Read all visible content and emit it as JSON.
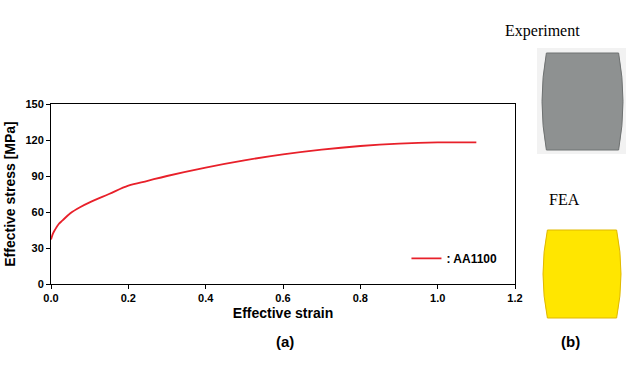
{
  "chart_data": {
    "type": "line",
    "x_label": "Effective strain",
    "y_label": "Effective stress [MPa]",
    "x": [
      0,
      0.005,
      0.01,
      0.02,
      0.03,
      0.05,
      0.075,
      0.1,
      0.15,
      0.2,
      0.25,
      0.3,
      0.4,
      0.5,
      0.6,
      0.7,
      0.8,
      0.9,
      1.0,
      1.1
    ],
    "series": [
      {
        "name": ": AA1100",
        "color": "#e8202a",
        "values": [
          37,
          42,
          45,
          50,
          53,
          59,
          64,
          68,
          75,
          82,
          86,
          90,
          97,
          103,
          108,
          112,
          115,
          117,
          118,
          118
        ]
      }
    ],
    "xlim": [
      0,
      1.2
    ],
    "xticks": [
      {
        "value": 0,
        "label": "0.0"
      },
      0.2,
      0.4,
      0.6,
      0.8,
      {
        "value": 1,
        "label": "1.0"
      },
      1.2
    ],
    "ylim": [
      0,
      150
    ],
    "yticks": [
      0,
      30,
      60,
      90,
      120,
      150
    ],
    "grid": false,
    "legend": "lower right",
    "caption": "(a)"
  },
  "panel_b": {
    "caption": "(b)",
    "images": [
      {
        "label": "Experiment",
        "color": "#8e9191"
      },
      {
        "label": "FEA",
        "color": "#ffe600"
      }
    ]
  }
}
